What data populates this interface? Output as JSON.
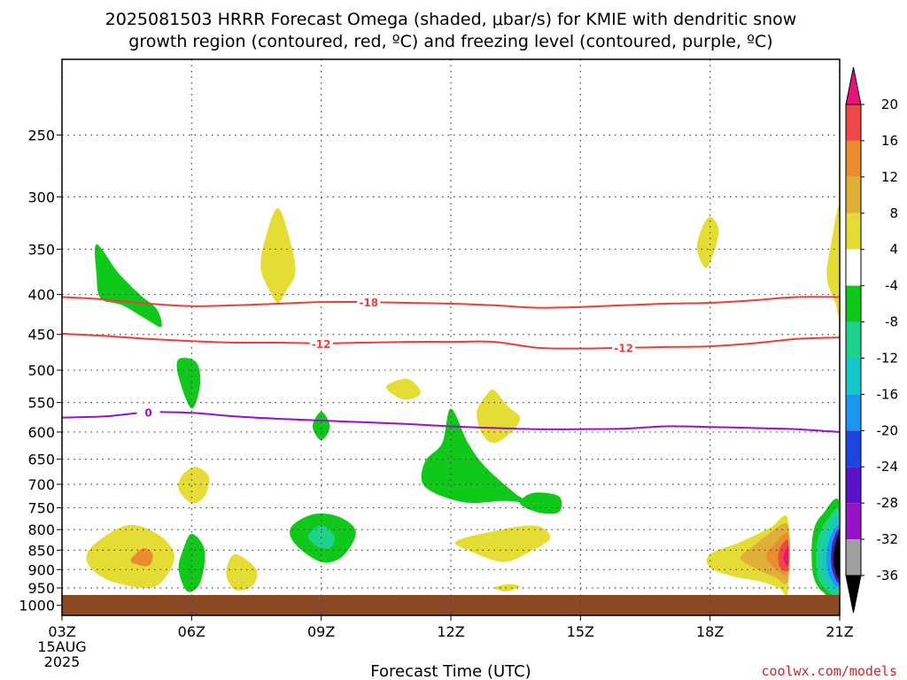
{
  "chart_data": {
    "type": "contour",
    "title_lines": [
      "2025081503 HRRR Forecast Omega (shaded, μbar/s) for KMIE with dendritic snow",
      "growth region (contoured, red, ºC) and freezing level (contoured, purple, ºC)"
    ],
    "xlabel": "Forecast Time (UTC)",
    "credit": "coolwx.com/models",
    "x_ticks": [
      {
        "x": 3,
        "label": "03Z",
        "sub": [
          "15AUG",
          "2025"
        ]
      },
      {
        "x": 6,
        "label": "06Z"
      },
      {
        "x": 9,
        "label": "09Z"
      },
      {
        "x": 12,
        "label": "12Z"
      },
      {
        "x": 15,
        "label": "15Z"
      },
      {
        "x": 18,
        "label": "18Z"
      },
      {
        "x": 21,
        "label": "21Z"
      }
    ],
    "xlim": [
      3,
      21
    ],
    "y_ticks": [
      250,
      300,
      350,
      400,
      450,
      500,
      550,
      600,
      650,
      700,
      750,
      800,
      850,
      900,
      950,
      1000
    ],
    "ylim": [
      200,
      1030
    ],
    "y_scale": "log-pressure, inverted",
    "grid": "dotted",
    "colorbar": {
      "levels": [
        "20",
        "16",
        "12",
        "8",
        "4",
        "-4",
        "-8",
        "-12",
        "-16",
        "-20",
        "-24",
        "-28",
        "-32",
        "-36"
      ],
      "colors": [
        "#e8127a",
        "#f04848",
        "#ea8c32",
        "#e2ae3a",
        "#e6dc36",
        "#ffffff",
        "#10c81a",
        "#1cd28c",
        "#14c8c8",
        "#1e96f0",
        "#1e46dc",
        "#5a14c8",
        "#9614c8",
        "#a0a0a0",
        "#000000"
      ]
    },
    "contours": [
      {
        "name": "-18",
        "color": "#f03c3c",
        "points": [
          [
            3,
            403
          ],
          [
            4,
            406
          ],
          [
            5,
            411
          ],
          [
            6,
            414
          ],
          [
            7,
            413
          ],
          [
            8,
            411
          ],
          [
            9,
            409
          ],
          [
            10,
            409
          ],
          [
            11,
            410
          ],
          [
            12,
            411
          ],
          [
            13,
            413
          ],
          [
            14,
            416
          ],
          [
            15,
            415
          ],
          [
            16,
            413
          ],
          [
            17,
            411
          ],
          [
            18,
            410
          ],
          [
            19,
            407
          ],
          [
            20,
            403
          ],
          [
            21,
            403
          ]
        ],
        "labels": [
          10.1
        ]
      },
      {
        "name": "-12",
        "color": "#f03c3c",
        "points": [
          [
            3,
            449
          ],
          [
            4,
            452
          ],
          [
            5,
            456
          ],
          [
            6,
            459
          ],
          [
            7,
            461
          ],
          [
            8,
            461
          ],
          [
            9,
            462
          ],
          [
            10,
            461
          ],
          [
            11,
            460
          ],
          [
            12,
            460
          ],
          [
            13,
            460
          ],
          [
            14,
            468
          ],
          [
            15,
            469
          ],
          [
            16,
            468
          ],
          [
            17,
            467
          ],
          [
            18,
            466
          ],
          [
            19,
            462
          ],
          [
            20,
            456
          ],
          [
            21,
            454
          ]
        ],
        "labels": [
          9.0,
          16.0
        ]
      },
      {
        "name": "0",
        "color": "#9614c8",
        "points": [
          [
            3,
            575
          ],
          [
            4,
            573
          ],
          [
            5,
            566
          ],
          [
            6,
            567
          ],
          [
            7,
            573
          ],
          [
            8,
            577
          ],
          [
            9,
            580
          ],
          [
            10,
            583
          ],
          [
            11,
            586
          ],
          [
            12,
            590
          ],
          [
            13,
            593
          ],
          [
            14,
            595
          ],
          [
            15,
            595
          ],
          [
            16,
            594
          ],
          [
            17,
            590
          ],
          [
            18,
            591
          ],
          [
            19,
            593
          ],
          [
            20,
            595
          ],
          [
            21,
            600
          ]
        ],
        "labels": [
          5.0
        ]
      }
    ],
    "shaded_blobs": [
      {
        "fill": "#10c81a",
        "points": [
          [
            3.8,
            345
          ],
          [
            4.3,
            375
          ],
          [
            4.8,
            400
          ],
          [
            5.2,
            418
          ],
          [
            5.3,
            440
          ],
          [
            5.0,
            432
          ],
          [
            4.4,
            413
          ],
          [
            3.9,
            405
          ],
          [
            3.8,
            378
          ]
        ]
      },
      {
        "fill": "#e6dc36",
        "points": [
          [
            8.0,
            310
          ],
          [
            8.3,
            345
          ],
          [
            8.4,
            375
          ],
          [
            8.2,
            395
          ],
          [
            8.0,
            410
          ],
          [
            7.8,
            395
          ],
          [
            7.6,
            370
          ],
          [
            7.7,
            340
          ]
        ]
      },
      {
        "fill": "#e6dc36",
        "points": [
          [
            18.0,
            318
          ],
          [
            18.2,
            330
          ],
          [
            18.1,
            352
          ],
          [
            17.9,
            370
          ],
          [
            17.7,
            350
          ],
          [
            17.8,
            330
          ]
        ]
      },
      {
        "fill": "#e6dc36",
        "points": [
          [
            21.0,
            310
          ],
          [
            20.8,
            345
          ],
          [
            20.7,
            380
          ],
          [
            20.9,
            410
          ],
          [
            21.0,
            420
          ]
        ]
      },
      {
        "fill": "#10c81a",
        "points": [
          [
            5.7,
            484
          ],
          [
            6.1,
            488
          ],
          [
            6.2,
            520
          ],
          [
            6.0,
            560
          ],
          [
            5.7,
            510
          ]
        ]
      },
      {
        "fill": "#e6dc36",
        "points": [
          [
            11.0,
            513
          ],
          [
            11.3,
            535
          ],
          [
            10.9,
            545
          ],
          [
            10.5,
            525
          ]
        ]
      },
      {
        "fill": "#e6dc36",
        "points": [
          [
            13.0,
            530
          ],
          [
            13.3,
            555
          ],
          [
            13.6,
            575
          ],
          [
            13.4,
            600
          ],
          [
            13.0,
            620
          ],
          [
            12.7,
            600
          ],
          [
            12.6,
            565
          ],
          [
            12.8,
            540
          ]
        ]
      },
      {
        "fill": "#10c81a",
        "points": [
          [
            9.0,
            565
          ],
          [
            9.2,
            590
          ],
          [
            9.0,
            615
          ],
          [
            8.8,
            590
          ]
        ]
      },
      {
        "fill": "#10c81a",
        "points": [
          [
            12.0,
            560
          ],
          [
            12.4,
            620
          ],
          [
            12.8,
            665
          ],
          [
            13.5,
            720
          ],
          [
            13.8,
            738
          ],
          [
            13.2,
            735
          ],
          [
            12.3,
            738
          ],
          [
            11.4,
            705
          ],
          [
            11.4,
            655
          ],
          [
            11.8,
            620
          ]
        ]
      },
      {
        "fill": "#10c81a",
        "points": [
          [
            13.9,
            718
          ],
          [
            14.5,
            725
          ],
          [
            14.5,
            760
          ],
          [
            14.0,
            760
          ],
          [
            13.6,
            740
          ]
        ]
      },
      {
        "fill": "#e6dc36",
        "points": [
          [
            6.1,
            665
          ],
          [
            6.4,
            685
          ],
          [
            6.3,
            725
          ],
          [
            6.0,
            740
          ],
          [
            5.7,
            710
          ],
          [
            5.8,
            680
          ]
        ]
      },
      {
        "fill": "#e6dc36",
        "points": [
          [
            4.5,
            790
          ],
          [
            5.2,
            810
          ],
          [
            5.6,
            860
          ],
          [
            5.4,
            920
          ],
          [
            5.0,
            950
          ],
          [
            4.1,
            930
          ],
          [
            3.6,
            885
          ],
          [
            3.7,
            840
          ]
        ]
      },
      {
        "fill": "#ea8c32",
        "points": [
          [
            4.9,
            845
          ],
          [
            5.1,
            860
          ],
          [
            5.0,
            890
          ],
          [
            4.6,
            880
          ],
          [
            4.7,
            860
          ]
        ]
      },
      {
        "fill": "#10c81a",
        "points": [
          [
            6.0,
            810
          ],
          [
            6.3,
            850
          ],
          [
            6.2,
            935
          ],
          [
            5.9,
            960
          ],
          [
            5.7,
            900
          ],
          [
            5.8,
            850
          ]
        ]
      },
      {
        "fill": "#e6dc36",
        "points": [
          [
            7.0,
            860
          ],
          [
            7.5,
            900
          ],
          [
            7.4,
            945
          ],
          [
            7.0,
            955
          ],
          [
            6.8,
            910
          ]
        ]
      },
      {
        "fill": "#10c81a",
        "points": [
          [
            8.8,
            765
          ],
          [
            9.4,
            770
          ],
          [
            9.8,
            805
          ],
          [
            9.5,
            865
          ],
          [
            9.0,
            880
          ],
          [
            8.4,
            835
          ],
          [
            8.3,
            795
          ]
        ]
      },
      {
        "fill": "#1cd28c",
        "points": [
          [
            9.0,
            790
          ],
          [
            9.3,
            815
          ],
          [
            9.2,
            845
          ],
          [
            8.9,
            840
          ],
          [
            8.7,
            815
          ]
        ]
      },
      {
        "fill": "#e6dc36",
        "points": [
          [
            12.7,
            810
          ],
          [
            13.9,
            790
          ],
          [
            14.3,
            820
          ],
          [
            13.8,
            855
          ],
          [
            13.2,
            880
          ],
          [
            12.4,
            850
          ],
          [
            12.1,
            830
          ]
        ]
      },
      {
        "fill": "#e6dc36",
        "points": [
          [
            13.3,
            940
          ],
          [
            13.6,
            945
          ],
          [
            13.3,
            960
          ],
          [
            13.0,
            950
          ]
        ]
      },
      {
        "fill": "#e6dc36",
        "points": [
          [
            19.8,
            775
          ],
          [
            19.4,
            795
          ],
          [
            18.7,
            830
          ],
          [
            18.0,
            860
          ],
          [
            18.0,
            895
          ],
          [
            18.6,
            920
          ],
          [
            19.1,
            930
          ],
          [
            19.6,
            950
          ],
          [
            19.8,
            960
          ]
        ]
      },
      {
        "fill": "#e2ae3a",
        "points": [
          [
            19.8,
            790
          ],
          [
            19.3,
            815
          ],
          [
            19.0,
            840
          ],
          [
            18.7,
            870
          ],
          [
            19.1,
            900
          ],
          [
            19.5,
            920
          ],
          [
            19.8,
            930
          ]
        ]
      },
      {
        "fill": "#ea8c32",
        "points": [
          [
            19.8,
            810
          ],
          [
            19.5,
            835
          ],
          [
            19.3,
            865
          ],
          [
            19.5,
            895
          ],
          [
            19.8,
            910
          ]
        ]
      },
      {
        "fill": "#f04848",
        "points": [
          [
            19.8,
            825
          ],
          [
            19.6,
            850
          ],
          [
            19.6,
            890
          ],
          [
            19.8,
            900
          ]
        ]
      },
      {
        "fill": "#e8127a",
        "points": [
          [
            19.8,
            840
          ],
          [
            19.7,
            870
          ],
          [
            19.8,
            890
          ]
        ]
      },
      {
        "fill": "#10c81a",
        "points": [
          [
            21.0,
            740
          ],
          [
            20.6,
            765
          ],
          [
            20.4,
            800
          ],
          [
            20.35,
            860
          ],
          [
            20.4,
            920
          ],
          [
            20.6,
            960
          ],
          [
            21.0,
            975
          ]
        ]
      },
      {
        "fill": "#1cd28c",
        "points": [
          [
            21.0,
            760
          ],
          [
            20.7,
            780
          ],
          [
            20.5,
            820
          ],
          [
            20.45,
            880
          ],
          [
            20.55,
            935
          ],
          [
            21.0,
            960
          ]
        ]
      },
      {
        "fill": "#14c8c8",
        "points": [
          [
            21.0,
            780
          ],
          [
            20.75,
            800
          ],
          [
            20.6,
            850
          ],
          [
            20.65,
            920
          ],
          [
            21.0,
            948
          ]
        ]
      },
      {
        "fill": "#1e96f0",
        "points": [
          [
            21.0,
            795
          ],
          [
            20.8,
            815
          ],
          [
            20.7,
            860
          ],
          [
            20.75,
            915
          ],
          [
            21.0,
            940
          ]
        ]
      },
      {
        "fill": "#5a14c8",
        "points": [
          [
            21.0,
            805
          ],
          [
            20.85,
            825
          ],
          [
            20.8,
            870
          ],
          [
            20.85,
            910
          ],
          [
            21.0,
            930
          ]
        ]
      },
      {
        "fill": "#000000",
        "points": [
          [
            21.0,
            815
          ],
          [
            20.9,
            835
          ],
          [
            20.85,
            870
          ],
          [
            20.9,
            905
          ],
          [
            21.0,
            920
          ]
        ]
      }
    ],
    "ground": {
      "fill": "#8b4a25",
      "from_pressure": 970
    }
  }
}
